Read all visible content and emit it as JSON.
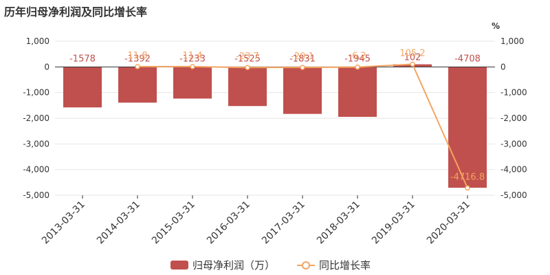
{
  "title": "历年归母净利润及同比增长率",
  "colors": {
    "bar": "#c0504d",
    "line": "#f4a460",
    "axis": "#333333",
    "grid": "#e6e6e6"
  },
  "chart_data": {
    "type": "bar",
    "title": "历年归母净利润及同比增长率",
    "categories": [
      "2013-03-31",
      "2014-03-31",
      "2015-03-31",
      "2016-03-31",
      "2017-03-31",
      "2018-03-31",
      "2019-03-31",
      "2020-03-31"
    ],
    "left_axis": {
      "min": -5000,
      "max": 1000,
      "ticks": [
        "1,000",
        "0",
        "-1,000",
        "-2,000",
        "-3,000",
        "-4,000",
        "-5,000"
      ]
    },
    "right_axis": {
      "unit": "%",
      "min": -5000,
      "max": 1000,
      "ticks": [
        "1,000",
        "0",
        "-1,000",
        "-2,000",
        "-3,000",
        "-4,000",
        "-5,000"
      ]
    },
    "series": [
      {
        "name": "归母净利润（万）",
        "kind": "bar",
        "values": [
          -1578,
          -1392,
          -1233,
          -1525,
          -1831,
          -1945,
          102,
          -4708
        ],
        "labels": [
          "-1578",
          "-1392",
          "-1233",
          "-1525",
          "-1831",
          "-1945",
          "102",
          "-4708"
        ]
      },
      {
        "name": "同比增长率",
        "kind": "line",
        "values": [
          null,
          11.8,
          11.4,
          -23.7,
          -20.1,
          -6.2,
          105.2,
          -4716.8
        ],
        "labels": [
          "",
          "11.8",
          "11.4",
          "-23.7",
          "-20.1",
          "-6.2",
          "105.2",
          "-4716.8"
        ]
      }
    ],
    "grid": true,
    "legend_position": "bottom"
  }
}
